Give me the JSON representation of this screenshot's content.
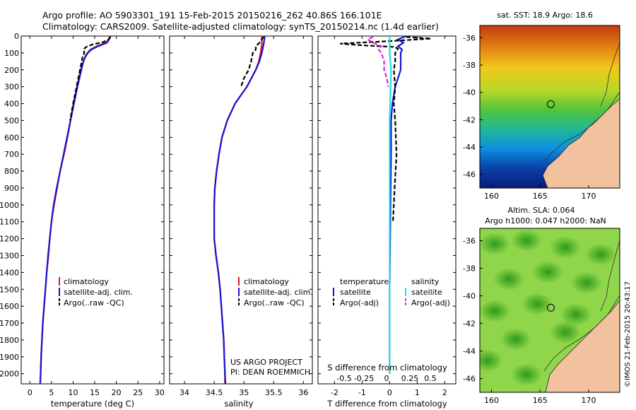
{
  "header": {
    "line1": "Argo profile: AO 5903301_191 15-Feb-2015 20150216_262 40.86S 166.101E",
    "line2": "Climatology: CARS2009. Satellite-adjusted climatology: synTS_20150214.nc (1.4d earlier)"
  },
  "colors": {
    "climatology": "#e41a1c",
    "satellite": "#1515d0",
    "argo": "#000000",
    "sat_salinity": "#22dddd",
    "argo_salinity": "#dd22dd",
    "land": "#f2c29e"
  },
  "pressure_ticks": [
    0,
    100,
    200,
    300,
    400,
    500,
    600,
    700,
    800,
    900,
    1000,
    1100,
    1200,
    1300,
    1400,
    1500,
    1600,
    1700,
    1800,
    1900,
    2000
  ],
  "legend": {
    "climatology": "climatology",
    "satellite": "satellite-adj. clim.",
    "argo": "Argo(..raw -QC)",
    "temperature": "temperature",
    "salinity": "salinity",
    "sat": "satellite",
    "argo_adj": "Argo(-adj)"
  },
  "credit": {
    "line1": "US ARGO PROJECT",
    "line2": "PI: DEAN ROEMMICH"
  },
  "maps": {
    "sst_title": "sat. SST: 18.9 Argo: 18.6",
    "sla_title_1": "Altim. SLA: 0.064",
    "sla_title_2": "Argo h1000: 0.047 h2000: NaN",
    "lat_ticks": [
      "-36",
      "-38",
      "-40",
      "-42",
      "-44",
      "-46"
    ],
    "lon_ticks": [
      "160",
      "165",
      "170"
    ],
    "float_lon": 166.101,
    "float_lat": -40.86
  },
  "stamp": "©IMOS 21-Feb-2015 20:43:17",
  "chart_data": [
    {
      "type": "line",
      "xlabel": "temperature (deg C)",
      "xlim": [
        -2,
        31
      ],
      "xticks": [
        0,
        5,
        10,
        15,
        20,
        25,
        30
      ],
      "ylim": [
        2060,
        0
      ],
      "series": [
        {
          "name": "climatology",
          "p": [
            0,
            20,
            40,
            60,
            80,
            100,
            120,
            150,
            200,
            300,
            400,
            500,
            600,
            700,
            800,
            900,
            1000,
            1100,
            1200,
            1300,
            1400,
            1500,
            1600,
            1700,
            1800,
            1900,
            2000,
            2060
          ],
          "values": [
            18.7,
            18.3,
            17.5,
            15.5,
            14.0,
            13.3,
            12.8,
            12.4,
            11.8,
            10.9,
            10.1,
            9.4,
            8.7,
            7.9,
            7.0,
            6.3,
            5.6,
            5.0,
            4.6,
            4.3,
            3.9,
            3.6,
            3.3,
            3.0,
            2.8,
            2.6,
            2.5,
            2.4
          ]
        },
        {
          "name": "satellite-adj. clim.",
          "p": [
            0,
            20,
            40,
            60,
            80,
            100,
            120,
            150,
            200,
            300,
            400,
            500,
            600,
            700,
            800,
            900,
            1000,
            1100,
            1200,
            1300,
            1400,
            1500,
            1600,
            1700,
            1800,
            1900,
            2000,
            2060
          ],
          "values": [
            18.5,
            18.3,
            17.8,
            15.8,
            14.2,
            13.4,
            12.9,
            12.4,
            11.9,
            11.0,
            10.2,
            9.4,
            8.6,
            7.8,
            7.0,
            6.2,
            5.5,
            5.0,
            4.6,
            4.2,
            3.9,
            3.6,
            3.3,
            3.0,
            2.8,
            2.6,
            2.5,
            2.4
          ]
        },
        {
          "name": "Argo(..raw -QC)",
          "p": [
            5,
            20,
            35,
            50,
            65,
            80,
            100,
            120,
            150,
            200,
            300,
            400,
            500
          ],
          "values": [
            18.6,
            18.2,
            17.0,
            14.5,
            13.0,
            12.4,
            12.6,
            12.2,
            12.0,
            11.6,
            10.8,
            10.0,
            9.3
          ]
        }
      ]
    },
    {
      "type": "line",
      "xlabel": "salinity",
      "xlim": [
        33.75,
        36.15
      ],
      "xticks": [
        34,
        34.5,
        35,
        35.5,
        36
      ],
      "ylim": [
        2060,
        0
      ],
      "series": [
        {
          "name": "climatology",
          "p": [
            0,
            50,
            100,
            150,
            200,
            300,
            400,
            500,
            600,
            700,
            800,
            900,
            1000,
            1100,
            1200,
            1300,
            1400,
            1500,
            1600,
            1700,
            1800,
            1900,
            2000,
            2060
          ],
          "values": [
            35.3,
            35.3,
            35.28,
            35.25,
            35.2,
            35.05,
            34.85,
            34.72,
            34.63,
            34.58,
            34.54,
            34.51,
            34.5,
            34.5,
            34.5,
            34.53,
            34.57,
            34.6,
            34.62,
            34.64,
            34.66,
            34.67,
            34.68,
            34.68
          ]
        },
        {
          "name": "satellite-adj. clim.",
          "p": [
            0,
            50,
            100,
            150,
            200,
            300,
            400,
            500,
            600,
            700,
            800,
            900,
            1000,
            1100,
            1200,
            1300,
            1400,
            1500,
            1600,
            1700,
            1800,
            1900,
            2000,
            2060
          ],
          "values": [
            35.35,
            35.33,
            35.3,
            35.26,
            35.2,
            35.05,
            34.85,
            34.72,
            34.63,
            34.58,
            34.54,
            34.51,
            34.5,
            34.5,
            34.5,
            34.53,
            34.57,
            34.6,
            34.62,
            34.64,
            34.66,
            34.67,
            34.68,
            34.69
          ]
        },
        {
          "name": "Argo(..raw -QC)",
          "p": [
            5,
            20,
            40,
            60,
            80,
            100,
            150,
            200,
            250,
            300
          ],
          "values": [
            35.33,
            35.3,
            35.26,
            35.2,
            35.2,
            35.15,
            35.12,
            35.08,
            35.0,
            34.95
          ]
        }
      ]
    },
    {
      "type": "line",
      "xlabel": "T difference from climatology",
      "xlabel2": "S difference from climatology",
      "xlim": [
        -2.6,
        2.4
      ],
      "xticks": [
        -2,
        -1,
        0,
        1,
        2
      ],
      "sticks": [
        "-0.5",
        "-0.25",
        "0",
        "0.25",
        "0.5"
      ],
      "ylim": [
        2060,
        0
      ],
      "series": [
        {
          "name": "temperature satellite",
          "p": [
            0,
            20,
            40,
            60,
            80,
            100,
            150,
            200,
            300,
            400,
            500,
            700,
            1000,
            1500,
            2000
          ],
          "values": [
            0.6,
            0.3,
            0.5,
            0.3,
            0.45,
            0.4,
            0.4,
            0.4,
            0.2,
            0.1,
            0.05,
            0.05,
            0.03,
            0.0,
            0.0
          ]
        },
        {
          "name": "temperature Argo(-adj)",
          "p": [
            5,
            15,
            25,
            35,
            45,
            55,
            65,
            75,
            100,
            150,
            200,
            300,
            400,
            500,
            700,
            900,
            1000,
            1100
          ],
          "values": [
            0.6,
            1.5,
            0.5,
            -0.6,
            -1.8,
            -1.0,
            0.2,
            0.3,
            0.2,
            0.2,
            0.15,
            0.2,
            0.15,
            0.2,
            0.25,
            0.18,
            0.15,
            0.12
          ]
        },
        {
          "name": "salinity satellite",
          "p": [
            0,
            100,
            200,
            500,
            1000,
            1500,
            2000
          ],
          "values": [
            0.0,
            0.0,
            0.05,
            0.0,
            0.0,
            0.0,
            0.0
          ]
        },
        {
          "name": "salinity Argo(-adj)",
          "p": [
            5,
            20,
            40,
            60,
            80,
            100,
            150,
            200,
            250,
            300
          ],
          "values": [
            -0.6,
            -0.8,
            -0.6,
            -0.3,
            -0.4,
            -0.3,
            -0.2,
            -0.2,
            -0.1,
            -0.05
          ]
        }
      ]
    }
  ]
}
